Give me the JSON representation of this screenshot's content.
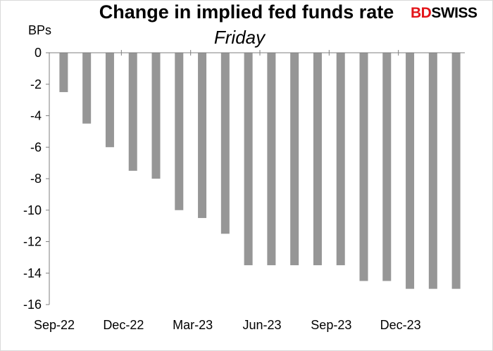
{
  "chart_data": {
    "type": "bar",
    "title": "Change in implied fed funds rate",
    "subtitle": "Friday",
    "ylabel": "BPs",
    "xlabel": "",
    "ylim": [
      -16,
      0
    ],
    "yticks": [
      0,
      -2,
      -4,
      -6,
      -8,
      -10,
      -12,
      -14,
      -16
    ],
    "x_tick_labels": [
      "Sep-22",
      "Dec-22",
      "Mar-23",
      "Jun-23",
      "Sep-23",
      "Dec-23"
    ],
    "categories": [
      "Sep-22",
      "Oct-22",
      "Nov-22",
      "Dec-22",
      "Jan-23",
      "Feb-23",
      "Mar-23",
      "Apr-23",
      "May-23",
      "Jun-23",
      "Jul-23",
      "Aug-23",
      "Sep-23",
      "Oct-23",
      "Nov-23",
      "Dec-23",
      "Jan-24",
      "Feb-24"
    ],
    "values": [
      -2.5,
      -4.5,
      -6,
      -7.5,
      -8,
      -10,
      -10.5,
      -11.5,
      -13.5,
      -13.5,
      -13.5,
      -13.5,
      -13.5,
      -14.5,
      -14.5,
      -15,
      -15,
      -15
    ],
    "bar_color": "#969696",
    "grid": false
  },
  "logo": {
    "part1": "BD",
    "part2": "SWISS",
    "color": "#e3151a"
  }
}
